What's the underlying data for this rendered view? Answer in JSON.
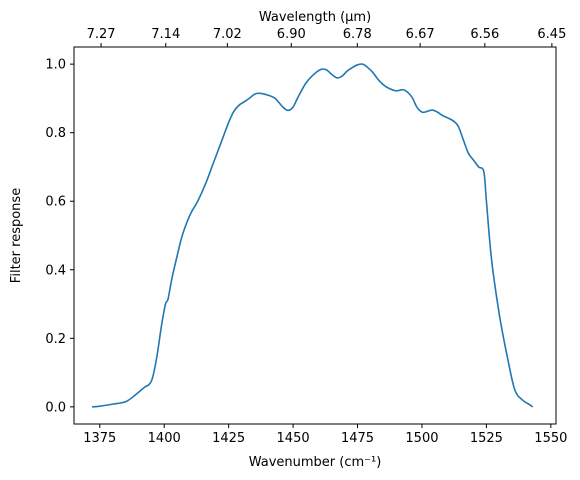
{
  "chart_data": {
    "type": "line",
    "xlabel": "Wavenumber (cm⁻¹)",
    "ylabel": "Filter response",
    "top_xlabel": "Wavelength (μm)",
    "xlim": [
      1365,
      1552
    ],
    "ylim": [
      -0.05,
      1.05
    ],
    "grid": false,
    "x_ticks": [
      1375,
      1400,
      1425,
      1450,
      1475,
      1500,
      1525,
      1550
    ],
    "y_ticks": [
      0.0,
      0.2,
      0.4,
      0.6,
      0.8,
      1.0
    ],
    "top_ticks": [
      {
        "label": "7.27",
        "wavenumber": 1375.5
      },
      {
        "label": "7.14",
        "wavenumber": 1400.6
      },
      {
        "label": "7.02",
        "wavenumber": 1424.5
      },
      {
        "label": "6.90",
        "wavenumber": 1449.3
      },
      {
        "label": "6.78",
        "wavenumber": 1474.9
      },
      {
        "label": "6.67",
        "wavenumber": 1499.3
      },
      {
        "label": "6.56",
        "wavenumber": 1524.4
      },
      {
        "label": "6.45",
        "wavenumber": 1550.4
      }
    ],
    "line_color": "#1f77b4",
    "series": [
      {
        "x": [
          1372,
          1375,
          1380,
          1385,
          1388,
          1392,
          1395,
          1397,
          1399,
          1400.5,
          1401.5,
          1403,
          1405,
          1407,
          1410,
          1413,
          1416,
          1419,
          1422,
          1425,
          1427,
          1429,
          1431,
          1433,
          1435,
          1437,
          1440,
          1443,
          1446,
          1448,
          1450,
          1452,
          1455,
          1458,
          1461,
          1463,
          1465,
          1467,
          1469,
          1471,
          1473,
          1475,
          1477,
          1479,
          1481,
          1483,
          1485,
          1487,
          1490,
          1493,
          1496,
          1498,
          1500,
          1502,
          1504,
          1506,
          1508,
          1510,
          1512,
          1514,
          1516,
          1518,
          1520,
          1522,
          1524,
          1525,
          1527,
          1530,
          1533,
          1536,
          1539,
          1541,
          1543
        ],
        "y": [
          0.0,
          0.002,
          0.008,
          0.015,
          0.03,
          0.055,
          0.075,
          0.14,
          0.24,
          0.3,
          0.315,
          0.375,
          0.44,
          0.5,
          0.56,
          0.6,
          0.65,
          0.71,
          0.77,
          0.83,
          0.862,
          0.88,
          0.89,
          0.9,
          0.912,
          0.915,
          0.91,
          0.9,
          0.875,
          0.865,
          0.875,
          0.905,
          0.945,
          0.97,
          0.985,
          0.983,
          0.97,
          0.96,
          0.965,
          0.98,
          0.99,
          0.998,
          1.0,
          0.99,
          0.975,
          0.955,
          0.94,
          0.93,
          0.922,
          0.925,
          0.905,
          0.875,
          0.86,
          0.862,
          0.866,
          0.86,
          0.85,
          0.843,
          0.835,
          0.82,
          0.78,
          0.74,
          0.72,
          0.7,
          0.686,
          0.6,
          0.43,
          0.27,
          0.15,
          0.05,
          0.02,
          0.01,
          0.0
        ]
      }
    ]
  }
}
